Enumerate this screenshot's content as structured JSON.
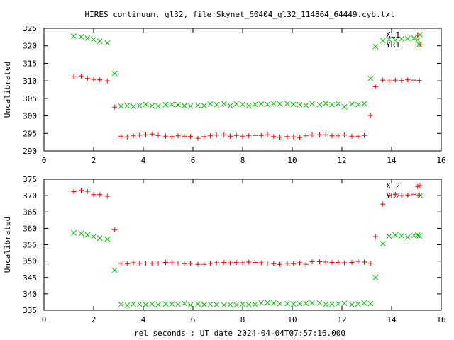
{
  "title": "HIRES continuum, gl32, file:Skynet_60404_gl32_114864_64449.cyb.txt",
  "xlabel": "rel seconds : UT date 2024-04-04T07:57:16.000",
  "colors": {
    "red_series": "#ff0000",
    "green_series": "#00c000",
    "axes": "#000000"
  },
  "chart_data": [
    {
      "type": "scatter",
      "ylabel": "Uncalibrated",
      "xlim": [
        0,
        16
      ],
      "ylim": [
        290,
        325
      ],
      "xticks": [
        0,
        2,
        4,
        6,
        8,
        10,
        12,
        14,
        16
      ],
      "yticks": [
        290,
        295,
        300,
        305,
        310,
        315,
        320,
        325
      ],
      "grid": false,
      "legend_position": "top-right",
      "series": [
        {
          "name": "XL1",
          "marker": "x",
          "color": "#00c000",
          "x": [
            1.2,
            1.5,
            1.75,
            2.0,
            2.25,
            2.55,
            2.85,
            3.1,
            3.35,
            3.6,
            3.85,
            4.1,
            4.35,
            4.6,
            4.9,
            5.15,
            5.4,
            5.65,
            5.9,
            6.2,
            6.45,
            6.7,
            6.95,
            7.25,
            7.5,
            7.75,
            8.0,
            8.25,
            8.5,
            8.75,
            9.0,
            9.25,
            9.5,
            9.8,
            10.05,
            10.3,
            10.55,
            10.8,
            11.1,
            11.35,
            11.6,
            11.85,
            12.1,
            12.4,
            12.65,
            12.9,
            13.15,
            13.35,
            13.65,
            13.9,
            14.15,
            14.4,
            14.65,
            14.9,
            15.05,
            15.12
          ],
          "y": [
            322.8,
            322.6,
            322.2,
            321.8,
            321.3,
            320.8,
            312.1,
            302.8,
            302.9,
            302.7,
            302.9,
            303.3,
            302.9,
            302.8,
            303.2,
            303.3,
            303.2,
            302.9,
            302.8,
            303.0,
            302.9,
            303.4,
            303.2,
            303.5,
            302.9,
            303.4,
            303.3,
            302.9,
            303.3,
            303.4,
            303.3,
            303.5,
            303.4,
            303.5,
            303.3,
            303.2,
            303.0,
            303.5,
            303.2,
            303.6,
            303.2,
            303.5,
            302.6,
            303.4,
            303.2,
            303.5,
            310.7,
            319.8,
            321.5,
            321.8,
            321.6,
            322.0,
            322.1,
            322.2,
            321.7,
            320.4
          ]
        },
        {
          "name": "YR1",
          "marker": "+",
          "color": "#ff0000",
          "x": [
            1.2,
            1.5,
            1.75,
            2.0,
            2.25,
            2.55,
            2.85,
            3.1,
            3.35,
            3.6,
            3.85,
            4.1,
            4.35,
            4.6,
            4.9,
            5.15,
            5.4,
            5.65,
            5.9,
            6.2,
            6.45,
            6.7,
            6.95,
            7.25,
            7.5,
            7.75,
            8.0,
            8.25,
            8.5,
            8.75,
            9.0,
            9.25,
            9.5,
            9.8,
            10.05,
            10.3,
            10.55,
            10.8,
            11.1,
            11.35,
            11.6,
            11.85,
            12.1,
            12.4,
            12.65,
            12.9,
            13.15,
            13.35,
            13.65,
            13.9,
            14.15,
            14.4,
            14.65,
            14.9,
            15.05,
            15.12
          ],
          "y": [
            311.2,
            311.4,
            310.7,
            310.4,
            310.3,
            310.0,
            302.5,
            294.2,
            294.0,
            294.3,
            294.5,
            294.6,
            294.8,
            294.4,
            294.2,
            294.1,
            294.3,
            294.2,
            294.1,
            293.6,
            294.1,
            294.3,
            294.5,
            294.6,
            294.2,
            294.4,
            294.2,
            294.3,
            294.4,
            294.4,
            294.6,
            294.1,
            293.9,
            294.1,
            294.0,
            293.8,
            294.3,
            294.5,
            294.6,
            294.6,
            294.3,
            294.3,
            294.5,
            294.2,
            294.2,
            294.4,
            300.1,
            308.3,
            310.2,
            310.0,
            310.2,
            310.1,
            310.3,
            310.2,
            323.0,
            310.1
          ]
        }
      ]
    },
    {
      "type": "scatter",
      "ylabel": "Uncalibrated",
      "xlim": [
        0,
        16
      ],
      "ylim": [
        335,
        375
      ],
      "xticks": [
        0,
        2,
        4,
        6,
        8,
        10,
        12,
        14,
        16
      ],
      "yticks": [
        335,
        340,
        345,
        350,
        355,
        360,
        365,
        370,
        375
      ],
      "grid": false,
      "legend_position": "top-right",
      "series": [
        {
          "name": "XL2",
          "marker": "+",
          "color": "#ff0000",
          "x": [
            1.2,
            1.5,
            1.75,
            2.0,
            2.25,
            2.55,
            2.85,
            3.1,
            3.35,
            3.6,
            3.85,
            4.1,
            4.35,
            4.6,
            4.9,
            5.15,
            5.4,
            5.65,
            5.9,
            6.2,
            6.45,
            6.7,
            6.95,
            7.25,
            7.5,
            7.75,
            8.0,
            8.25,
            8.5,
            8.75,
            9.0,
            9.25,
            9.5,
            9.8,
            10.05,
            10.3,
            10.55,
            10.8,
            11.1,
            11.35,
            11.6,
            11.85,
            12.1,
            12.4,
            12.65,
            12.9,
            13.15,
            13.35,
            13.65,
            13.9,
            14.15,
            14.4,
            14.65,
            14.9,
            15.05,
            15.12
          ],
          "y": [
            371.2,
            371.6,
            371.3,
            370.3,
            370.3,
            369.8,
            359.5,
            349.3,
            349.2,
            349.5,
            349.3,
            349.4,
            349.3,
            349.4,
            349.6,
            349.5,
            349.4,
            349.2,
            349.3,
            349.0,
            349.0,
            349.3,
            349.5,
            349.6,
            349.5,
            349.6,
            349.5,
            349.7,
            349.6,
            349.5,
            349.4,
            349.2,
            349.0,
            349.3,
            349.2,
            349.5,
            349.0,
            349.8,
            349.8,
            349.7,
            349.6,
            349.6,
            349.5,
            349.6,
            349.9,
            349.7,
            349.3,
            357.5,
            367.4,
            370.1,
            370.4,
            370.0,
            370.2,
            370.4,
            372.8,
            370.2
          ]
        },
        {
          "name": "YR2",
          "marker": "x",
          "color": "#00c000",
          "x": [
            1.2,
            1.5,
            1.75,
            2.0,
            2.25,
            2.55,
            2.85,
            3.1,
            3.35,
            3.6,
            3.85,
            4.1,
            4.35,
            4.6,
            4.9,
            5.15,
            5.4,
            5.65,
            5.9,
            6.2,
            6.45,
            6.7,
            6.95,
            7.25,
            7.5,
            7.75,
            8.0,
            8.25,
            8.5,
            8.75,
            9.0,
            9.25,
            9.5,
            9.8,
            10.05,
            10.3,
            10.55,
            10.8,
            11.1,
            11.35,
            11.6,
            11.85,
            12.1,
            12.4,
            12.65,
            12.9,
            13.15,
            13.35,
            13.65,
            13.9,
            14.15,
            14.4,
            14.65,
            14.9,
            15.05,
            15.12
          ],
          "y": [
            358.6,
            358.4,
            358.0,
            357.5,
            357.0,
            356.7,
            347.2,
            336.8,
            336.5,
            336.9,
            336.8,
            336.7,
            336.9,
            336.7,
            336.9,
            336.9,
            336.8,
            337.1,
            336.6,
            336.9,
            336.7,
            336.8,
            336.7,
            336.6,
            336.7,
            336.6,
            336.9,
            336.7,
            336.8,
            337.2,
            337.3,
            337.2,
            337.0,
            337.0,
            336.9,
            337.0,
            337.1,
            337.2,
            337.2,
            336.8,
            336.8,
            337.0,
            337.1,
            336.7,
            336.9,
            337.2,
            337.0,
            345.0,
            355.3,
            357.6,
            358.0,
            357.7,
            357.3,
            357.8,
            357.9,
            357.7
          ]
        }
      ]
    }
  ]
}
